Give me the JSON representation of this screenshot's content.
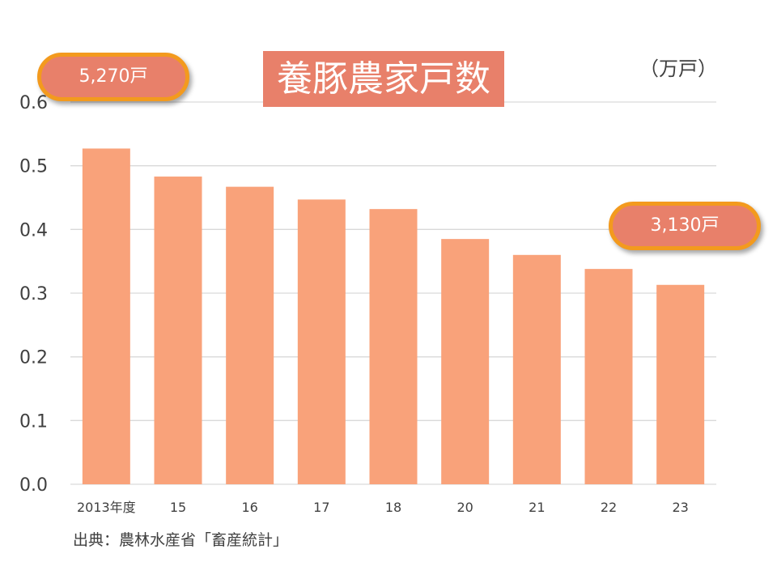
{
  "chart_data": {
    "type": "bar",
    "title": "養豚農家戸数",
    "unit_label": "（万戸）",
    "categories": [
      "2013年度",
      "15",
      "16",
      "17",
      "18",
      "20",
      "21",
      "22",
      "23"
    ],
    "values": [
      0.527,
      0.483,
      0.467,
      0.447,
      0.432,
      0.385,
      0.36,
      0.338,
      0.313
    ],
    "ylim": [
      0,
      0.6
    ],
    "yticks": [
      "0.0",
      "0.1",
      "0.2",
      "0.3",
      "0.4",
      "0.5",
      "0.6"
    ],
    "grid": true,
    "bar_color": "#f9a27a",
    "annotations": {
      "first": "5,270戸",
      "last": "3,130戸"
    },
    "source": "出典：農林水産省「畜産統計」"
  }
}
